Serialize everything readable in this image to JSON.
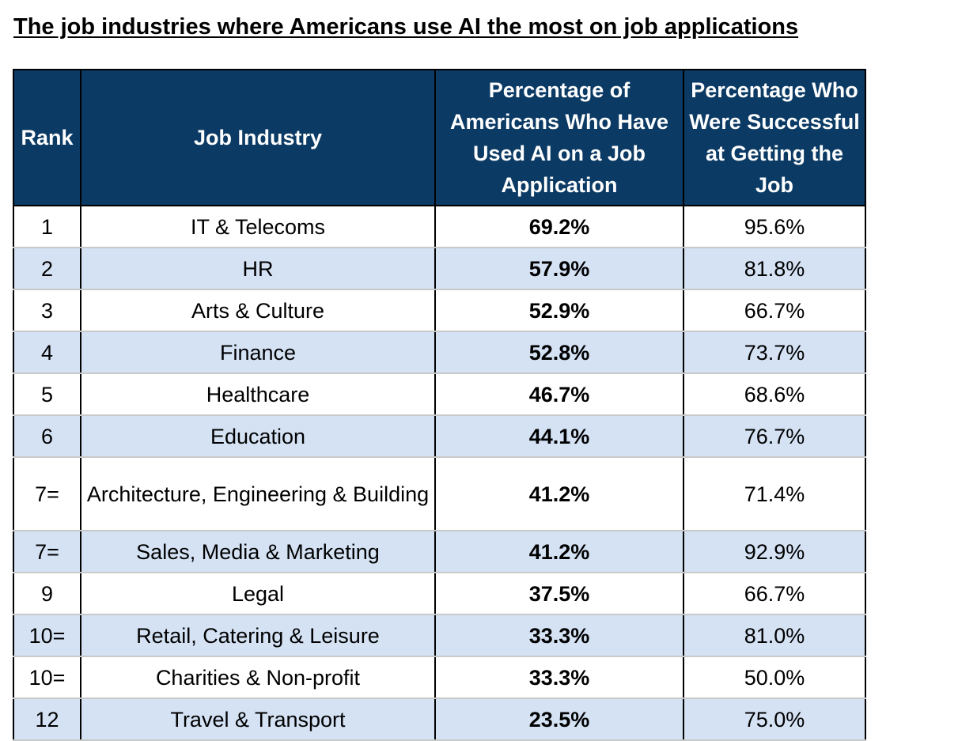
{
  "title": "The job industries where Americans use AI the most on job applications",
  "table": {
    "headers": {
      "rank": "Rank",
      "industry": "Job Industry",
      "pct_used_ai": "Percentage of Americans Who Have Used AI on a Job Application",
      "pct_successful": "Percentage Who Were Successful at Getting the Job"
    },
    "rows": [
      {
        "rank": "1",
        "industry": "IT & Telecoms",
        "pct_used_ai": "69.2%",
        "pct_successful": "95.6%"
      },
      {
        "rank": "2",
        "industry": "HR",
        "pct_used_ai": "57.9%",
        "pct_successful": "81.8%"
      },
      {
        "rank": "3",
        "industry": "Arts & Culture",
        "pct_used_ai": "52.9%",
        "pct_successful": "66.7%"
      },
      {
        "rank": "4",
        "industry": "Finance",
        "pct_used_ai": "52.8%",
        "pct_successful": "73.7%"
      },
      {
        "rank": "5",
        "industry": "Healthcare",
        "pct_used_ai": "46.7%",
        "pct_successful": "68.6%"
      },
      {
        "rank": "6",
        "industry": "Education",
        "pct_used_ai": "44.1%",
        "pct_successful": "76.7%"
      },
      {
        "rank": "7=",
        "industry": "Architecture, Engineering & Building",
        "pct_used_ai": "41.2%",
        "pct_successful": "71.4%"
      },
      {
        "rank": "7=",
        "industry": "Sales, Media & Marketing",
        "pct_used_ai": "41.2%",
        "pct_successful": "92.9%"
      },
      {
        "rank": "9",
        "industry": "Legal",
        "pct_used_ai": "37.5%",
        "pct_successful": "66.7%"
      },
      {
        "rank": "10=",
        "industry": "Retail, Catering & Leisure",
        "pct_used_ai": "33.3%",
        "pct_successful": "81.0%"
      },
      {
        "rank": "10=",
        "industry": "Charities & Non-profit",
        "pct_used_ai": "33.3%",
        "pct_successful": "50.0%"
      },
      {
        "rank": "12",
        "industry": "Travel & Transport",
        "pct_used_ai": "23.5%",
        "pct_successful": "75.0%"
      }
    ]
  },
  "colors": {
    "header_background": "#0b3a64",
    "header_text": "#ffffff",
    "shaded_row_background": "#d4e2f4"
  }
}
